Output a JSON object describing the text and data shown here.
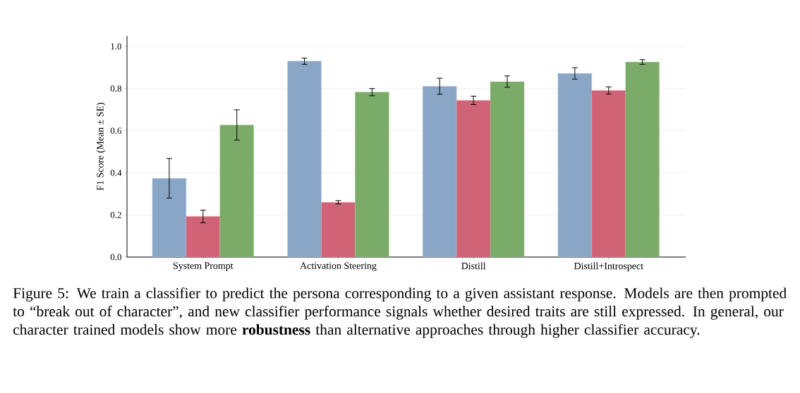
{
  "chart_data": {
    "type": "bar",
    "ylabel": "F1 Score (Mean ± SE)",
    "categories": [
      "System Prompt",
      "Activation Steering",
      "Distill",
      "Distill+Introspect"
    ],
    "series": [
      {
        "color": "#8aa6c7",
        "values": [
          0.374,
          0.93,
          0.811,
          0.872
        ],
        "errors": [
          0.094,
          0.015,
          0.038,
          0.027
        ]
      },
      {
        "color": "#d06375",
        "values": [
          0.193,
          0.26,
          0.744,
          0.791
        ],
        "errors": [
          0.03,
          0.008,
          0.02,
          0.017
        ]
      },
      {
        "color": "#7aab69",
        "values": [
          0.627,
          0.783,
          0.833,
          0.926
        ],
        "errors": [
          0.072,
          0.017,
          0.027,
          0.011
        ]
      }
    ],
    "ylim": [
      0,
      1.05
    ],
    "yticks": [
      {
        "value": 0,
        "label": "0.0"
      },
      {
        "value": 0.2,
        "label": "0.2"
      },
      {
        "value": 0.4,
        "label": "0.4"
      },
      {
        "value": 0.6,
        "label": "0.6"
      },
      {
        "value": 0.8,
        "label": "0.8"
      },
      {
        "value": 1,
        "label": "1.0"
      }
    ],
    "grid": "y",
    "annotations": [
      "Figure 5: We train a classifier to predict the persona corresponding to a given assistant response. Models are then prompted to “break out of character”, and new classifier performance signals whether desired traits are still expressed. In general, our character trained models show more **robustness** than alternative approaches through higher classifier accuracy."
    ]
  }
}
